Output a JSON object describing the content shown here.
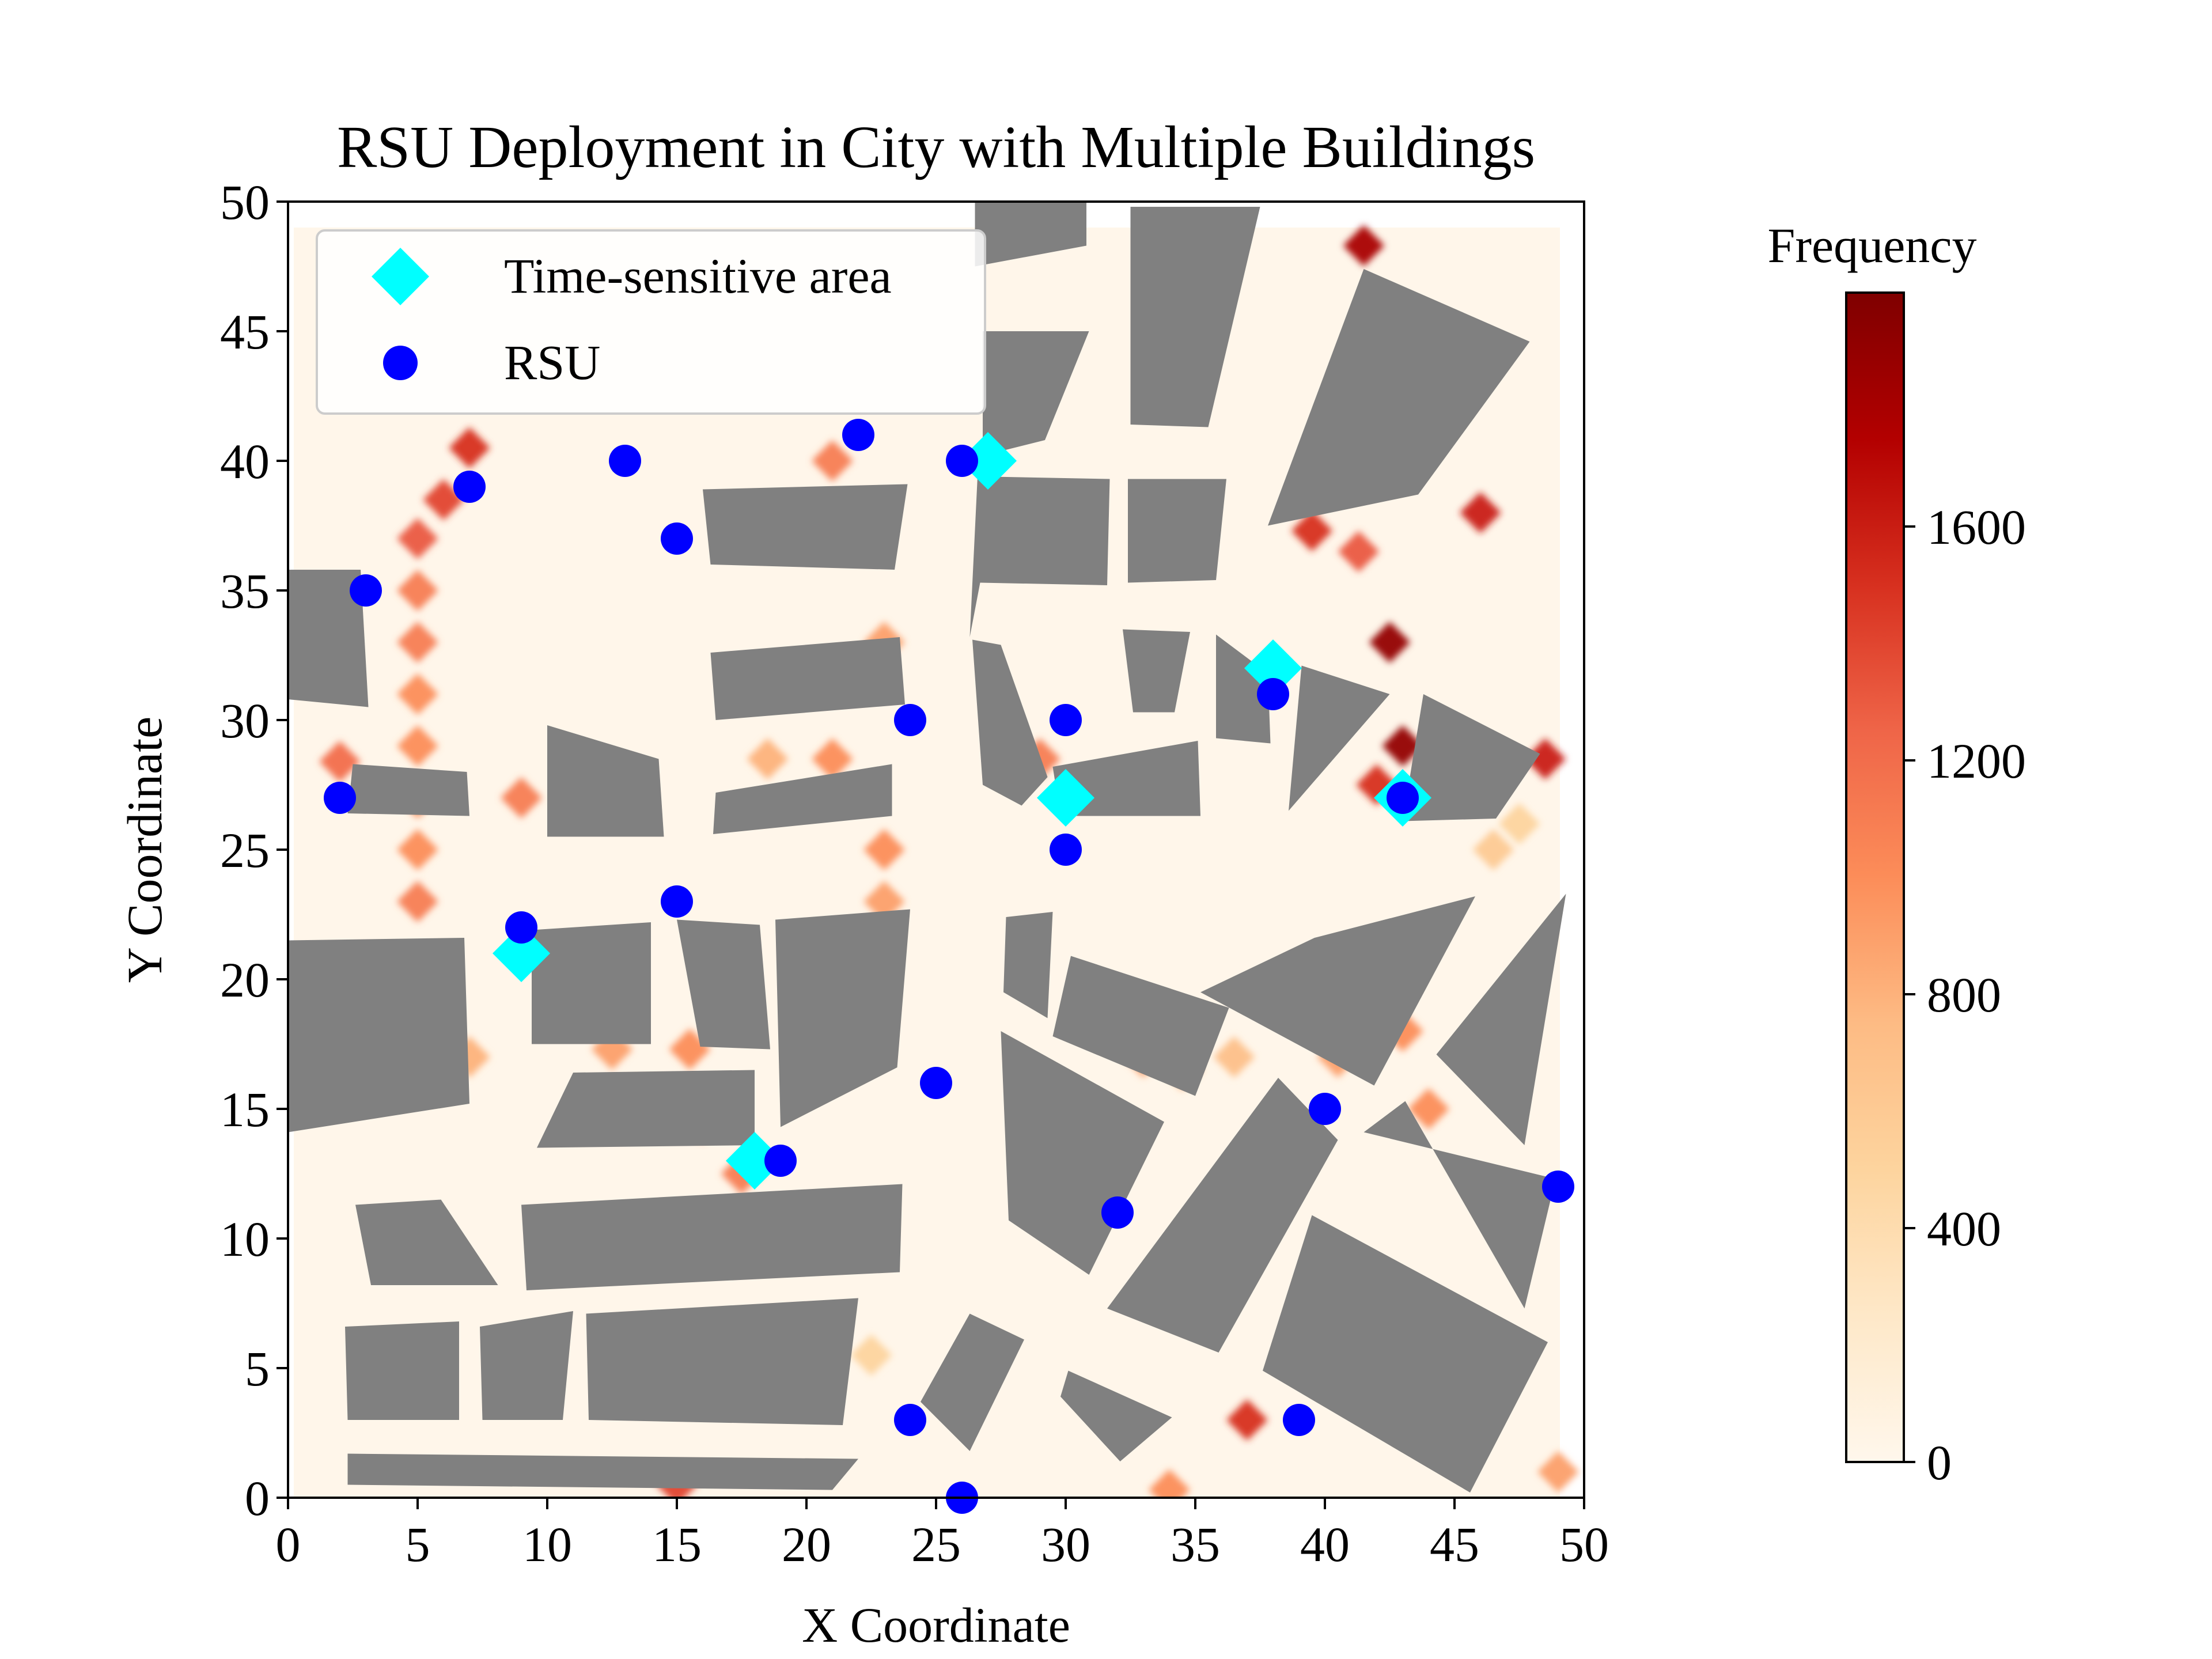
{
  "chart_data": {
    "type": "scatter",
    "title": "RSU Deployment in City with Multiple Buildings",
    "xlabel": "X Coordinate",
    "ylabel": "Y Coordinate",
    "xlim": [
      0,
      50
    ],
    "ylim": [
      0,
      50
    ],
    "xticks": [
      "0",
      "5",
      "10",
      "15",
      "20",
      "25",
      "30",
      "35",
      "40",
      "45",
      "50"
    ],
    "yticks": [
      "0",
      "5",
      "10",
      "15",
      "20",
      "25",
      "30",
      "35",
      "40",
      "45",
      "50"
    ],
    "legend": {
      "placement": "top-left",
      "entries": [
        {
          "label": "Time-sensitive area",
          "marker": "diamond",
          "color": "#00FFFF"
        },
        {
          "label": "RSU",
          "marker": "circle",
          "color": "#0000FF"
        }
      ]
    },
    "series": [
      {
        "name": "Time-sensitive area",
        "marker": "diamond",
        "color": "#00FFFF",
        "points": [
          [
            27,
            40
          ],
          [
            38,
            32
          ],
          [
            30,
            27
          ],
          [
            43,
            27
          ],
          [
            9,
            21
          ],
          [
            18,
            13
          ]
        ]
      },
      {
        "name": "RSU",
        "marker": "circle",
        "color": "#0000FF",
        "points": [
          [
            22,
            41
          ],
          [
            26,
            40
          ],
          [
            13,
            40
          ],
          [
            7,
            39
          ],
          [
            15,
            37
          ],
          [
            3,
            35
          ],
          [
            38,
            31
          ],
          [
            24,
            30
          ],
          [
            30,
            30
          ],
          [
            2,
            27
          ],
          [
            43,
            27
          ],
          [
            30,
            25
          ],
          [
            15,
            23
          ],
          [
            9,
            22
          ],
          [
            25,
            16
          ],
          [
            40,
            15
          ],
          [
            19,
            13
          ],
          [
            49,
            12
          ],
          [
            32,
            11
          ],
          [
            24,
            3
          ],
          [
            39,
            3
          ],
          [
            26,
            0
          ]
        ]
      }
    ],
    "buildings": {
      "color": "#808080",
      "polygons": [
        [
          [
            26.5,
            47.5
          ],
          [
            26.5,
            50
          ],
          [
            30.8,
            50
          ],
          [
            30.8,
            48.3
          ]
        ],
        [
          [
            26.8,
            40.2
          ],
          [
            26.8,
            45
          ],
          [
            30.9,
            45
          ],
          [
            29.2,
            40.8
          ]
        ],
        [
          [
            32.5,
            41.4
          ],
          [
            32.5,
            49.8
          ],
          [
            37.5,
            49.8
          ],
          [
            35.5,
            41.3
          ]
        ],
        [
          [
            37.8,
            37.5
          ],
          [
            41.5,
            47.4
          ],
          [
            47.9,
            44.6
          ],
          [
            43.6,
            38.7
          ]
        ],
        [
          [
            16.3,
            36
          ],
          [
            16,
            38.9
          ],
          [
            23.9,
            39.1
          ],
          [
            23.4,
            35.8
          ]
        ],
        [
          [
            26.3,
            33.2
          ],
          [
            26.6,
            39.4
          ],
          [
            31.7,
            39.3
          ],
          [
            31.6,
            35.2
          ],
          [
            26.7,
            35.3
          ]
        ],
        [
          [
            32.4,
            35.3
          ],
          [
            32.4,
            39.3
          ],
          [
            36.2,
            39.3
          ],
          [
            35.8,
            35.4
          ]
        ],
        [
          [
            16.5,
            30
          ],
          [
            16.3,
            32.6
          ],
          [
            23.6,
            33.2
          ],
          [
            23.8,
            30.6
          ]
        ],
        [
          [
            26.4,
            33.1
          ],
          [
            26.8,
            27.5
          ],
          [
            28.3,
            26.7
          ],
          [
            29.3,
            27.8
          ],
          [
            27.5,
            32.9
          ]
        ],
        [
          [
            32.2,
            33.5
          ],
          [
            32.6,
            30.3
          ],
          [
            34.2,
            30.3
          ],
          [
            34.8,
            33.4
          ]
        ],
        [
          [
            35.8,
            33.3
          ],
          [
            35.8,
            29.3
          ],
          [
            37.9,
            29.1
          ],
          [
            37.8,
            31.8
          ]
        ],
        [
          [
            38.6,
            26.5
          ],
          [
            39.1,
            32.1
          ],
          [
            42.5,
            31
          ]
        ],
        [
          [
            29.5,
            28.2
          ],
          [
            29.8,
            26.3
          ],
          [
            35.2,
            26.3
          ],
          [
            35.1,
            29.2
          ]
        ],
        [
          [
            43,
            26.1
          ],
          [
            46.6,
            26.2
          ],
          [
            48.3,
            28.7
          ],
          [
            43.8,
            31
          ]
        ],
        [
          [
            0,
            30.8
          ],
          [
            0,
            35.8
          ],
          [
            2.8,
            35.8
          ],
          [
            3.1,
            30.5
          ]
        ],
        [
          [
            2.5,
            28.3
          ],
          [
            2.3,
            26.4
          ],
          [
            7,
            26.3
          ],
          [
            6.9,
            28
          ]
        ],
        [
          [
            10,
            25.5
          ],
          [
            14.5,
            25.5
          ],
          [
            14.3,
            28.5
          ],
          [
            10,
            29.8
          ]
        ],
        [
          [
            16.5,
            27.2
          ],
          [
            16.4,
            25.6
          ],
          [
            23.3,
            26.3
          ],
          [
            23.3,
            28.3
          ]
        ],
        [
          [
            0,
            14.1
          ],
          [
            0,
            21.5
          ],
          [
            6.8,
            21.6
          ],
          [
            7,
            15.2
          ]
        ],
        [
          [
            9.4,
            17.5
          ],
          [
            9.4,
            21.9
          ],
          [
            14,
            22.2
          ],
          [
            14,
            17.5
          ]
        ],
        [
          [
            15.9,
            17.4
          ],
          [
            15,
            22.3
          ],
          [
            18.2,
            22.1
          ],
          [
            18.6,
            17.3
          ]
        ],
        [
          [
            19,
            14.3
          ],
          [
            18.8,
            22.3
          ],
          [
            24,
            22.7
          ],
          [
            23.5,
            16.6
          ]
        ],
        [
          [
            9.6,
            13.5
          ],
          [
            11,
            16.4
          ],
          [
            18,
            16.5
          ],
          [
            18,
            13.6
          ]
        ],
        [
          [
            27.7,
            22.4
          ],
          [
            27.6,
            19.5
          ],
          [
            29.3,
            18.5
          ],
          [
            29.5,
            22.6
          ]
        ],
        [
          [
            30.2,
            20.9
          ],
          [
            29.5,
            17.8
          ],
          [
            35,
            15.5
          ],
          [
            36.3,
            18.9
          ]
        ],
        [
          [
            35.2,
            19.5
          ],
          [
            39.6,
            21.6
          ],
          [
            45.8,
            23.2
          ],
          [
            41.9,
            15.9
          ]
        ],
        [
          [
            44.3,
            17.1
          ],
          [
            49.3,
            23.3
          ],
          [
            47.7,
            13.6
          ]
        ],
        [
          [
            27.5,
            18
          ],
          [
            27.8,
            10.7
          ],
          [
            30.9,
            8.6
          ],
          [
            33.8,
            14.5
          ]
        ],
        [
          [
            31.6,
            7.3
          ],
          [
            35.9,
            5.6
          ],
          [
            40.5,
            13.8
          ],
          [
            38.2,
            16.2
          ]
        ],
        [
          [
            41.5,
            14.1
          ],
          [
            48.9,
            12.3
          ],
          [
            47.7,
            7.3
          ],
          [
            43.1,
            15.3
          ]
        ],
        [
          [
            2.6,
            11.3
          ],
          [
            5.9,
            11.5
          ],
          [
            8.1,
            8.2
          ],
          [
            3.2,
            8.2
          ]
        ],
        [
          [
            9,
            11.3
          ],
          [
            23.7,
            12.1
          ],
          [
            23.6,
            8.7
          ],
          [
            9.2,
            8
          ]
        ],
        [
          [
            2.2,
            6.6
          ],
          [
            6.6,
            6.8
          ],
          [
            6.6,
            3
          ],
          [
            2.3,
            3
          ]
        ],
        [
          [
            7.4,
            6.6
          ],
          [
            11,
            7.2
          ],
          [
            10.6,
            3
          ],
          [
            7.5,
            3
          ]
        ],
        [
          [
            11.5,
            7.1
          ],
          [
            22,
            7.7
          ],
          [
            21.4,
            2.8
          ],
          [
            11.6,
            3
          ]
        ],
        [
          [
            2.3,
            1.7
          ],
          [
            2.3,
            0.5
          ],
          [
            21,
            0.3
          ],
          [
            22,
            1.5
          ]
        ],
        [
          [
            26.3,
            7.1
          ],
          [
            28.4,
            6.1
          ],
          [
            26.3,
            1.8
          ],
          [
            24.4,
            3.7
          ]
        ],
        [
          [
            30.1,
            4.9
          ],
          [
            34.1,
            3.1
          ],
          [
            32.1,
            1.4
          ],
          [
            29.8,
            3.9
          ]
        ],
        [
          [
            37.6,
            4.9
          ],
          [
            39.5,
            10.9
          ],
          [
            48.6,
            6
          ],
          [
            45.6,
            0.2
          ]
        ]
      ]
    },
    "heatmap": {
      "colormap": "OrRd",
      "colorbar_label": "Frequency",
      "colorbar_ticks": [
        "0",
        "400",
        "800",
        "1200",
        "1600"
      ],
      "colorbar_range": [
        0,
        2000
      ],
      "hotspots": [
        [
          41.5,
          48.3,
          1800
        ],
        [
          39.5,
          37.3,
          1500
        ],
        [
          41.3,
          36.5,
          1300
        ],
        [
          46,
          38,
          1600
        ],
        [
          42.5,
          33,
          1900
        ],
        [
          43,
          29,
          1900
        ],
        [
          48.5,
          28.5,
          1600
        ],
        [
          42,
          27.5,
          1500
        ],
        [
          7,
          40.5,
          1500
        ],
        [
          6,
          38.5,
          1400
        ],
        [
          5,
          37,
          1300
        ],
        [
          5,
          35,
          1100
        ],
        [
          5,
          33,
          1100
        ],
        [
          5,
          31,
          1000
        ],
        [
          5,
          29,
          1000
        ],
        [
          5,
          27,
          1000
        ],
        [
          5,
          25,
          1000
        ],
        [
          5,
          23,
          1100
        ],
        [
          2,
          28.4,
          1200
        ],
        [
          9,
          27,
          1100
        ],
        [
          21,
          40,
          1100
        ],
        [
          23,
          33,
          900
        ],
        [
          23,
          25,
          1000
        ],
        [
          23,
          23,
          900
        ],
        [
          21,
          28.5,
          1000
        ],
        [
          18.5,
          28.5,
          800
        ],
        [
          29,
          28.5,
          1100
        ],
        [
          33,
          17,
          900
        ],
        [
          40.5,
          17,
          900
        ],
        [
          43,
          18,
          1000
        ],
        [
          44,
          15,
          1000
        ],
        [
          37,
          3,
          1500
        ],
        [
          15,
          0.5,
          1400
        ],
        [
          34,
          0.3,
          1000
        ],
        [
          49,
          1,
          900
        ],
        [
          47.5,
          26,
          500
        ],
        [
          20,
          18.5,
          800
        ],
        [
          15.5,
          17.3,
          1000
        ],
        [
          12.5,
          17.3,
          900
        ],
        [
          7,
          17,
          800
        ],
        [
          0.2,
          17,
          1000
        ],
        [
          16,
          14.5,
          1100
        ],
        [
          17.5,
          12.5,
          1100
        ],
        [
          22.5,
          5.5,
          500
        ],
        [
          34.5,
          16.5,
          800
        ],
        [
          36.5,
          17,
          700
        ],
        [
          46.5,
          25,
          600
        ]
      ]
    }
  }
}
